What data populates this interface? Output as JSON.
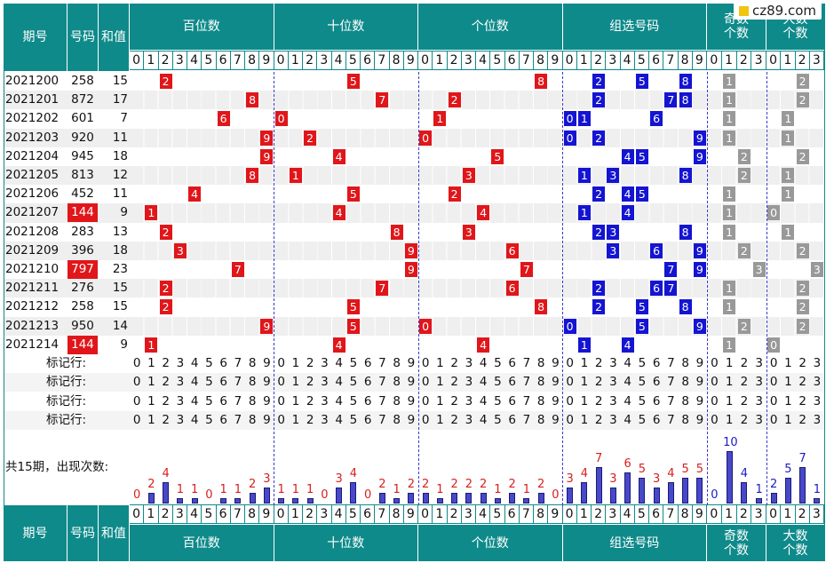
{
  "header": {
    "period": "期号",
    "number": "号码",
    "sum": "和值",
    "groups": [
      "百位数",
      "十位数",
      "个位数",
      "组选号码",
      "奇数个数",
      "大数个数"
    ],
    "groups_bottom": [
      "百位数",
      "十位数",
      "个位数",
      "组选号码"
    ],
    "odd_line1": "奇数",
    "odd_line2": "个数",
    "big_line1": "大数",
    "big_line2": "个数"
  },
  "digits10": [
    "0",
    "1",
    "2",
    "3",
    "4",
    "5",
    "6",
    "7",
    "8",
    "9"
  ],
  "digits4": [
    "0",
    "1",
    "2",
    "3"
  ],
  "rows": [
    {
      "period": "2021200",
      "number": "258",
      "sum": "15",
      "highlight": false,
      "hundred": 2,
      "ten": 5,
      "unit": 8,
      "group": [
        2,
        5,
        8
      ],
      "odd": 1,
      "big": 2
    },
    {
      "period": "2021201",
      "number": "872",
      "sum": "17",
      "highlight": false,
      "hundred": 8,
      "ten": 7,
      "unit": 2,
      "group": [
        2,
        7,
        8
      ],
      "odd": 1,
      "big": 2
    },
    {
      "period": "2021202",
      "number": "601",
      "sum": "7",
      "highlight": false,
      "hundred": 6,
      "ten": 0,
      "unit": 1,
      "group": [
        0,
        1,
        6
      ],
      "odd": 1,
      "big": 1
    },
    {
      "period": "2021203",
      "number": "920",
      "sum": "11",
      "highlight": false,
      "hundred": 9,
      "ten": 2,
      "unit": 0,
      "group": [
        0,
        2,
        9
      ],
      "odd": 1,
      "big": 1
    },
    {
      "period": "2021204",
      "number": "945",
      "sum": "18",
      "highlight": false,
      "hundred": 9,
      "ten": 4,
      "unit": 5,
      "group": [
        4,
        5,
        9
      ],
      "odd": 2,
      "big": 2
    },
    {
      "period": "2021205",
      "number": "813",
      "sum": "12",
      "highlight": false,
      "hundred": 8,
      "ten": 1,
      "unit": 3,
      "group": [
        1,
        3,
        8
      ],
      "odd": 2,
      "big": 1
    },
    {
      "period": "2021206",
      "number": "452",
      "sum": "11",
      "highlight": false,
      "hundred": 4,
      "ten": 5,
      "unit": 2,
      "group": [
        2,
        4,
        5
      ],
      "odd": 1,
      "big": 1
    },
    {
      "period": "2021207",
      "number": "144",
      "sum": "9",
      "highlight": true,
      "hundred": 1,
      "ten": 4,
      "unit": 4,
      "group": [
        1,
        4
      ],
      "odd": 1,
      "big": 0
    },
    {
      "period": "2021208",
      "number": "283",
      "sum": "13",
      "highlight": false,
      "hundred": 2,
      "ten": 8,
      "unit": 3,
      "group": [
        2,
        3,
        8
      ],
      "odd": 1,
      "big": 1
    },
    {
      "period": "2021209",
      "number": "396",
      "sum": "18",
      "highlight": false,
      "hundred": 3,
      "ten": 9,
      "unit": 6,
      "group": [
        3,
        6,
        9
      ],
      "odd": 2,
      "big": 2
    },
    {
      "period": "2021210",
      "number": "797",
      "sum": "23",
      "highlight": true,
      "hundred": 7,
      "ten": 9,
      "unit": 7,
      "group": [
        7,
        9
      ],
      "odd": 3,
      "big": 3
    },
    {
      "period": "2021211",
      "number": "276",
      "sum": "15",
      "highlight": false,
      "hundred": 2,
      "ten": 7,
      "unit": 6,
      "group": [
        2,
        6,
        7
      ],
      "odd": 1,
      "big": 2
    },
    {
      "period": "2021212",
      "number": "258",
      "sum": "15",
      "highlight": false,
      "hundred": 2,
      "ten": 5,
      "unit": 8,
      "group": [
        2,
        5,
        8
      ],
      "odd": 1,
      "big": 2
    },
    {
      "period": "2021213",
      "number": "950",
      "sum": "14",
      "highlight": false,
      "hundred": 9,
      "ten": 5,
      "unit": 0,
      "group": [
        0,
        5,
        9
      ],
      "odd": 2,
      "big": 2
    },
    {
      "period": "2021214",
      "number": "144",
      "sum": "9",
      "highlight": true,
      "hundred": 1,
      "ten": 4,
      "unit": 4,
      "group": [
        1,
        4
      ],
      "odd": 1,
      "big": 0
    }
  ],
  "marker_rows": [
    {
      "label": "标记行:"
    },
    {
      "label": "标记行:"
    },
    {
      "label": "标记行:"
    },
    {
      "label": "标记行:"
    }
  ],
  "stats": {
    "label": "共15期，出现次数:",
    "hundred": [
      0,
      2,
      4,
      1,
      1,
      0,
      1,
      1,
      2,
      3
    ],
    "ten": [
      1,
      1,
      1,
      0,
      3,
      4,
      0,
      2,
      1,
      2
    ],
    "unit": [
      2,
      1,
      2,
      2,
      2,
      1,
      2,
      1,
      2,
      0
    ],
    "group": [
      3,
      4,
      7,
      3,
      6,
      5,
      3,
      4,
      5,
      5
    ],
    "odd": [
      0,
      10,
      4,
      1
    ],
    "big": [
      2,
      5,
      7,
      1
    ]
  },
  "logo": {
    "text": "cz89.com"
  },
  "colors": {
    "header": "#0f8a8a",
    "hit_red": "#e0161a",
    "hit_blue": "#1414d2",
    "hit_gray": "#999999"
  }
}
